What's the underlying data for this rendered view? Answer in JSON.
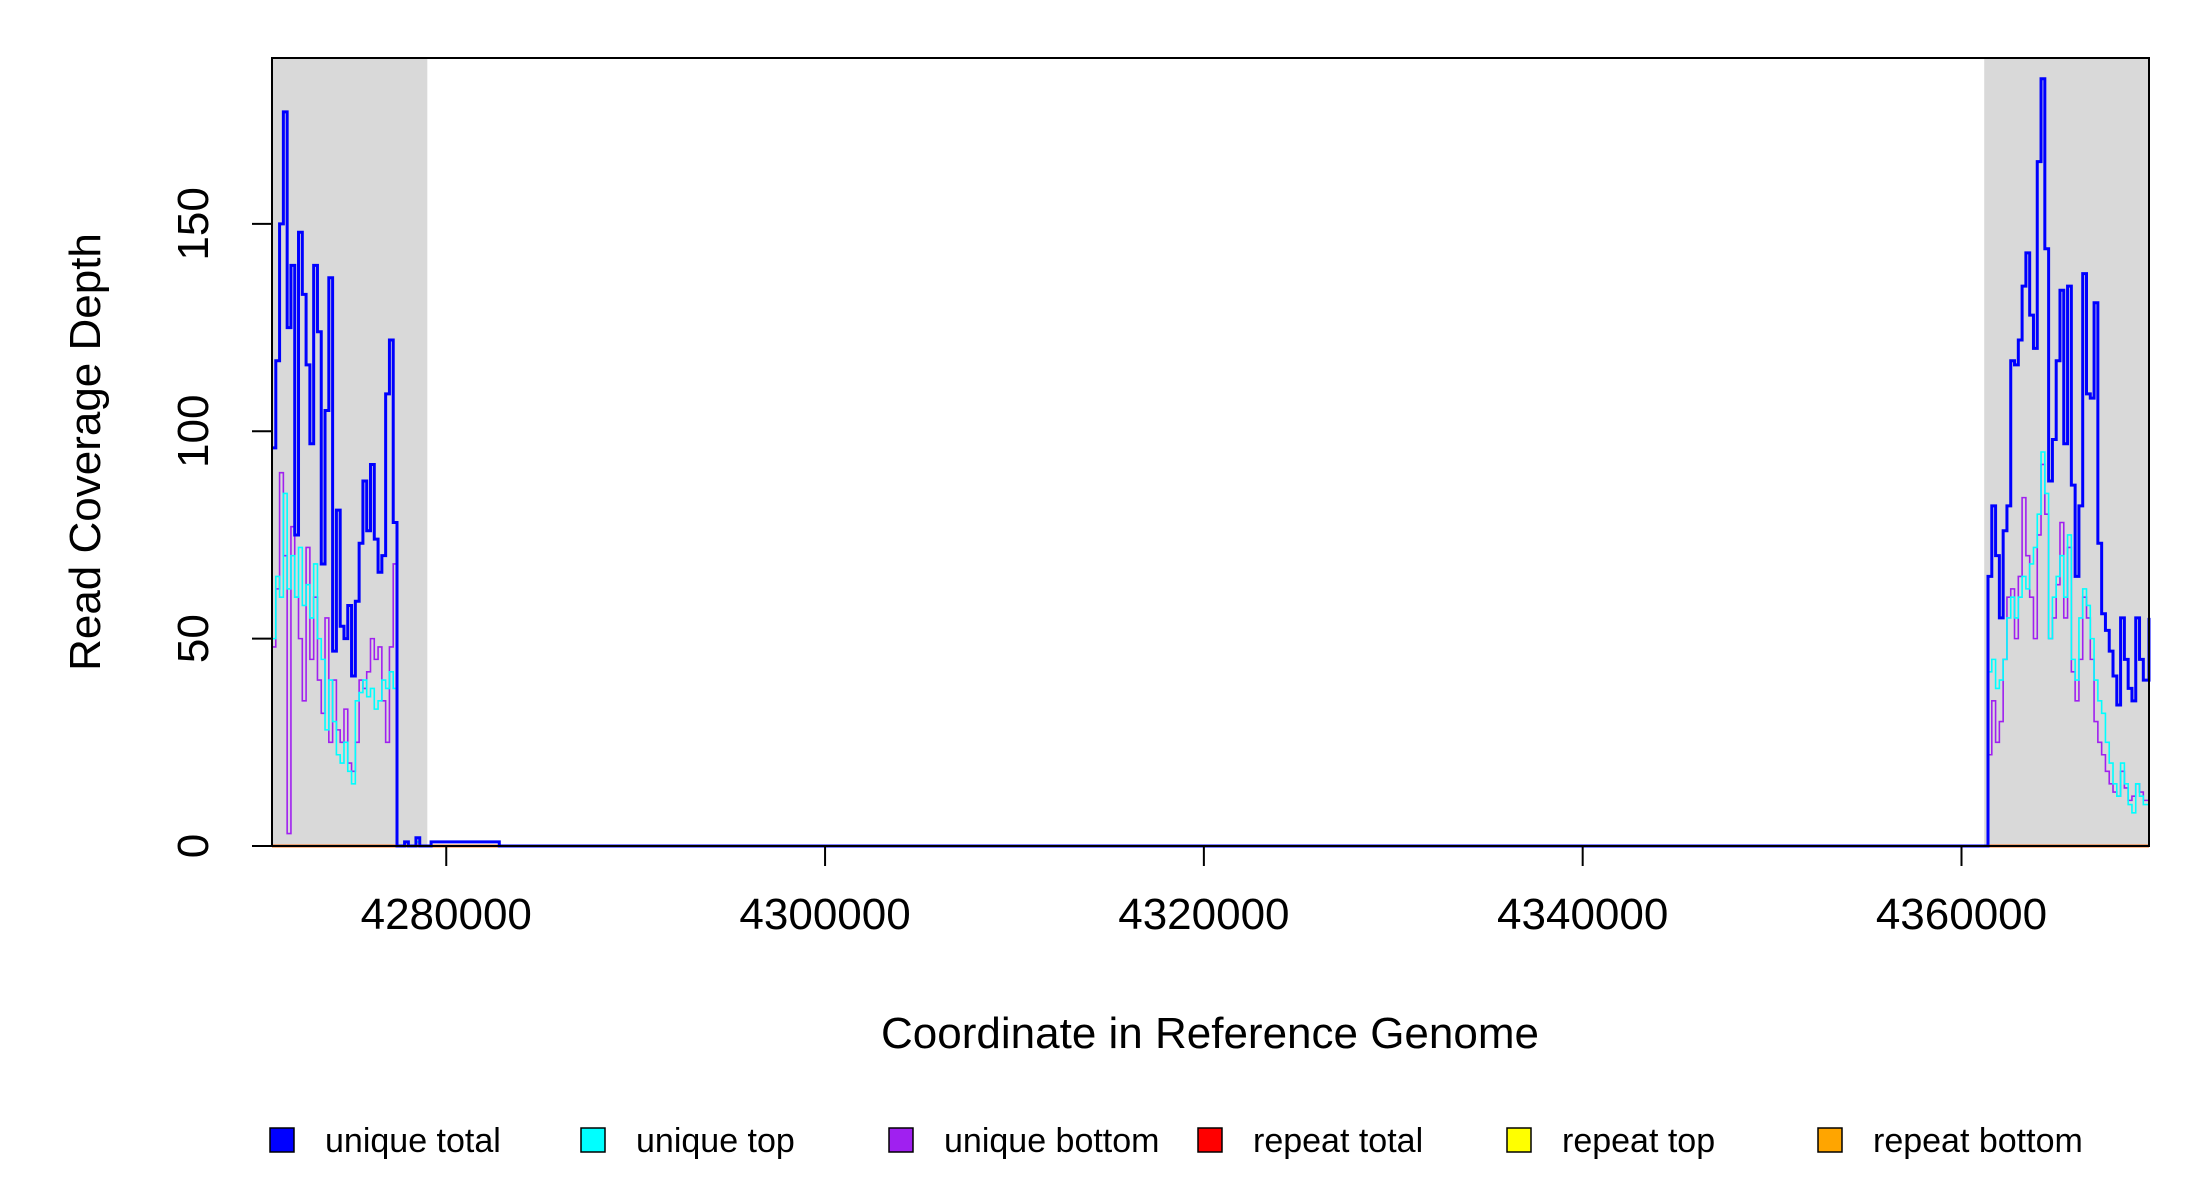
{
  "chart_data": {
    "type": "line",
    "title": "",
    "xlabel": "Coordinate in Reference Genome",
    "ylabel": "Read Coverage Depth",
    "xlim": [
      4270800,
      4369900
    ],
    "ylim": [
      0,
      190
    ],
    "xticks": [
      4280000,
      4300000,
      4320000,
      4340000,
      4360000
    ],
    "yticks": [
      0,
      50,
      100,
      150
    ],
    "grid": false,
    "legend_position": "bottom",
    "shaded_regions": [
      {
        "x0": 4270800,
        "x1": 4279000,
        "color": "#d9d9d9"
      },
      {
        "x0": 4361200,
        "x1": 4369900,
        "color": "#d9d9d9"
      }
    ],
    "series": [
      {
        "name": "unique total",
        "color": "#0000ff",
        "x": [
          4270800,
          4271000,
          4271200,
          4271400,
          4271600,
          4271800,
          4272000,
          4272200,
          4272400,
          4272600,
          4272800,
          4273000,
          4273200,
          4273400,
          4273600,
          4273800,
          4274000,
          4274200,
          4274400,
          4274600,
          4274800,
          4275000,
          4275200,
          4275400,
          4275600,
          4275800,
          4276000,
          4276200,
          4276400,
          4276600,
          4276800,
          4277000,
          4277200,
          4277400,
          4277600,
          4277800,
          4278000,
          4278200,
          4278400,
          4278600,
          4278800,
          4279000,
          4279200,
          4282800,
          4283000,
          4283300,
          4310500,
          4310700,
          4310900,
          4331300,
          4331500,
          4335300,
          4335500,
          4335800,
          4354100,
          4354300,
          4361200,
          4361400,
          4361600,
          4361800,
          4362000,
          4362200,
          4362400,
          4362600,
          4362800,
          4363000,
          4363200,
          4363400,
          4363600,
          4363800,
          4364000,
          4364200,
          4364400,
          4364600,
          4364800,
          4365000,
          4365200,
          4365400,
          4365600,
          4365800,
          4366000,
          4366200,
          4366400,
          4366600,
          4366800,
          4367000,
          4367200,
          4367400,
          4367600,
          4367800,
          4368000,
          4368200,
          4368400,
          4368600,
          4368800,
          4369000,
          4369200,
          4369400,
          4369600,
          4369900
        ],
        "y": [
          96,
          117,
          150,
          177,
          125,
          140,
          75,
          148,
          133,
          116,
          97,
          140,
          124,
          68,
          105,
          137,
          47,
          81,
          53,
          50,
          58,
          41,
          59,
          73,
          88,
          76,
          92,
          74,
          66,
          70,
          109,
          122,
          78,
          0,
          0,
          1,
          0,
          0,
          2,
          0,
          0,
          0,
          1,
          0,
          0,
          0,
          0,
          0,
          0,
          0,
          0,
          0,
          0,
          0,
          0,
          0,
          0,
          65,
          82,
          70,
          55,
          76,
          82,
          117,
          116,
          122,
          135,
          143,
          128,
          120,
          165,
          185,
          144,
          88,
          98,
          117,
          134,
          97,
          135,
          87,
          65,
          82,
          138,
          109,
          108,
          131,
          73,
          56,
          52,
          47,
          41,
          34,
          55,
          45,
          38,
          35,
          55,
          45,
          40,
          55
        ]
      },
      {
        "name": "unique top",
        "color": "#00ffff",
        "x": [
          4270800,
          4271000,
          4271200,
          4271400,
          4271600,
          4271800,
          4272000,
          4272200,
          4272400,
          4272600,
          4272800,
          4273000,
          4273200,
          4273400,
          4273600,
          4273800,
          4274000,
          4274200,
          4274400,
          4274600,
          4274800,
          4275000,
          4275200,
          4275400,
          4275600,
          4275800,
          4276000,
          4276200,
          4276400,
          4276600,
          4276800,
          4277000,
          4277200,
          4277400,
          4277600,
          4277800,
          4278000,
          4278200,
          4278400,
          4278600,
          4278800,
          4279000,
          4279200,
          4282800,
          4283000,
          4283300,
          4310500,
          4310700,
          4310900,
          4331300,
          4331500,
          4335300,
          4335500,
          4335800,
          4354100,
          4354300,
          4361200,
          4361400,
          4361600,
          4361800,
          4362000,
          4362200,
          4362400,
          4362600,
          4362800,
          4363000,
          4363200,
          4363400,
          4363600,
          4363800,
          4364000,
          4364200,
          4364400,
          4364600,
          4364800,
          4365000,
          4365200,
          4365400,
          4365600,
          4365800,
          4366000,
          4366200,
          4366400,
          4366600,
          4366800,
          4367000,
          4367200,
          4367400,
          4367600,
          4367800,
          4368000,
          4368200,
          4368400,
          4368600,
          4368800,
          4369000,
          4369200,
          4369400,
          4369600,
          4369900
        ],
        "y": [
          50,
          65,
          60,
          85,
          62,
          70,
          60,
          72,
          58,
          63,
          55,
          68,
          50,
          45,
          28,
          40,
          30,
          22,
          20,
          25,
          18,
          15,
          35,
          37,
          40,
          36,
          38,
          33,
          35,
          40,
          38,
          42,
          38,
          0,
          0,
          1,
          0,
          0,
          1,
          0,
          0,
          0,
          1,
          0,
          0,
          0,
          0,
          0,
          0,
          0,
          0,
          0,
          0,
          0,
          0,
          0,
          0,
          42,
          45,
          38,
          40,
          45,
          55,
          60,
          55,
          60,
          65,
          62,
          68,
          72,
          80,
          95,
          85,
          50,
          60,
          65,
          70,
          60,
          75,
          45,
          40,
          55,
          62,
          58,
          50,
          40,
          35,
          32,
          25,
          20,
          15,
          12,
          20,
          15,
          10,
          8,
          15,
          12,
          10,
          28
        ]
      },
      {
        "name": "unique bottom",
        "color": "#a020f0",
        "x": [
          4270800,
          4271000,
          4271200,
          4271400,
          4271600,
          4271800,
          4272000,
          4272200,
          4272400,
          4272600,
          4272800,
          4273000,
          4273200,
          4273400,
          4273600,
          4273800,
          4274000,
          4274200,
          4274400,
          4274600,
          4274800,
          4275000,
          4275200,
          4275400,
          4275600,
          4275800,
          4276000,
          4276200,
          4276400,
          4276600,
          4276800,
          4277000,
          4277200,
          4277400,
          4277600,
          4277800,
          4278000,
          4278200,
          4278400,
          4278600,
          4278800,
          4279000,
          4279200,
          4282800,
          4283000,
          4283300,
          4310500,
          4310700,
          4310900,
          4331300,
          4331500,
          4335300,
          4335500,
          4335800,
          4354100,
          4354300,
          4361200,
          4361400,
          4361600,
          4361800,
          4362000,
          4362200,
          4362400,
          4362600,
          4362800,
          4363000,
          4363200,
          4363400,
          4363600,
          4363800,
          4364000,
          4364200,
          4364400,
          4364600,
          4364800,
          4365000,
          4365200,
          4365400,
          4365600,
          4365800,
          4366000,
          4366200,
          4366400,
          4366600,
          4366800,
          4367000,
          4367200,
          4367400,
          4367600,
          4367800,
          4368000,
          4368200,
          4368400,
          4368600,
          4368800,
          4369000,
          4369200,
          4369400,
          4369600,
          4369900
        ],
        "y": [
          48,
          62,
          90,
          70,
          3,
          77,
          60,
          50,
          35,
          72,
          45,
          60,
          40,
          32,
          55,
          25,
          40,
          28,
          25,
          33,
          20,
          18,
          25,
          40,
          38,
          42,
          50,
          45,
          48,
          35,
          25,
          48,
          68,
          0,
          0,
          1,
          0,
          0,
          1,
          0,
          0,
          0,
          1,
          0,
          0,
          0,
          0,
          0,
          0,
          0,
          0,
          0,
          0,
          0,
          0,
          0,
          0,
          22,
          35,
          25,
          30,
          45,
          60,
          62,
          50,
          65,
          84,
          70,
          60,
          50,
          75,
          92,
          80,
          50,
          55,
          63,
          78,
          55,
          72,
          42,
          35,
          45,
          60,
          55,
          45,
          30,
          25,
          22,
          18,
          15,
          13,
          12,
          18,
          14,
          11,
          12,
          15,
          13,
          11,
          22
        ]
      },
      {
        "name": "repeat total",
        "color": "#ff0000",
        "x": [
          4270800,
          4369900
        ],
        "y": [
          0,
          0
        ]
      },
      {
        "name": "repeat top",
        "color": "#ffff00",
        "x": [
          4270800,
          4369900
        ],
        "y": [
          0,
          0
        ]
      },
      {
        "name": "repeat bottom",
        "color": "#ffa500",
        "x": [
          4270800,
          4369900
        ],
        "y": [
          0,
          0
        ]
      }
    ]
  }
}
